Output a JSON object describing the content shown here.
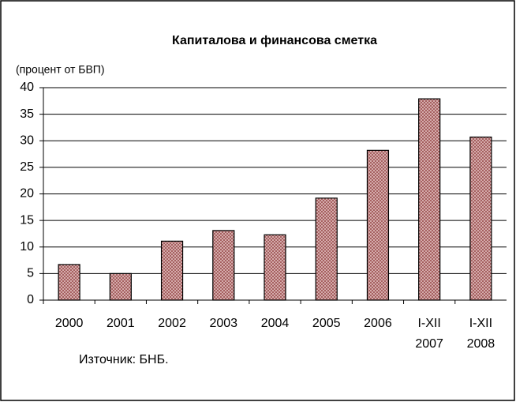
{
  "chart_data": {
    "type": "bar",
    "title": "Капиталова и финансова сметка",
    "subtitle": "(процент от БВП)",
    "source": "Източник: БНБ.",
    "categories": [
      "2000",
      "2001",
      "2002",
      "2003",
      "2004",
      "2005",
      "2006",
      "I-XII\n2007",
      "I-XII\n2008"
    ],
    "values": [
      6.7,
      5.0,
      11.1,
      13.1,
      12.3,
      19.2,
      28.2,
      37.9,
      30.7
    ],
    "color": "#c08080",
    "ylim": [
      0,
      40
    ],
    "yticks": [
      0,
      5,
      10,
      15,
      20,
      25,
      30,
      35,
      40
    ],
    "grid": true
  }
}
